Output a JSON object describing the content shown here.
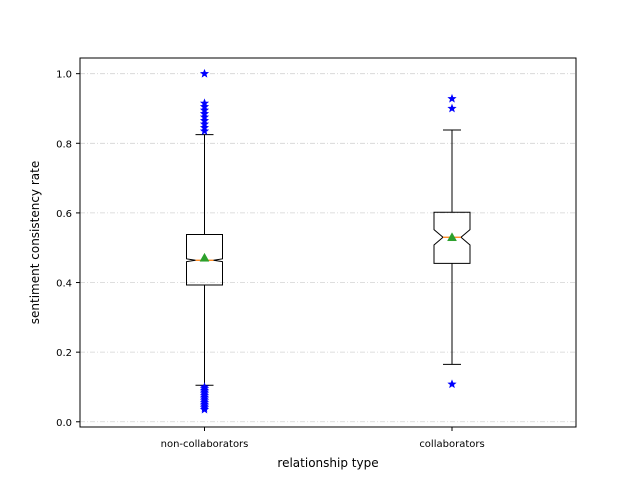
{
  "chart_data": {
    "type": "box",
    "title": "",
    "xlabel": "relationship type",
    "ylabel": "sentiment consistency rate",
    "ylim": [
      -0.015,
      1.045
    ],
    "yticks": [
      0.0,
      0.2,
      0.4,
      0.6,
      0.8,
      1.0
    ],
    "ytick_labels": [
      "0.0",
      "0.2",
      "0.4",
      "0.6",
      "0.8",
      "1.0"
    ],
    "grid": {
      "y": true,
      "x": false,
      "style": "dash-dot"
    },
    "notched": true,
    "show_means": true,
    "colors": {
      "box": "#000000",
      "median": "#ff7f0e",
      "mean": "#2ca02c",
      "flier": "#0000ff",
      "grid": "#d3d3d3"
    },
    "categories": [
      "non-collaborators",
      "collaborators"
    ],
    "boxes": [
      {
        "name": "non-collaborators",
        "whisker_low": 0.105,
        "q1": 0.393,
        "median": 0.464,
        "q3": 0.538,
        "whisker_high": 0.825,
        "mean": 0.471,
        "notch_low": 0.46,
        "notch_high": 0.468,
        "fliers": [
          0.035,
          0.04,
          0.045,
          0.05,
          0.055,
          0.06,
          0.065,
          0.07,
          0.075,
          0.08,
          0.085,
          0.09,
          0.095,
          0.1,
          0.835,
          0.845,
          0.855,
          0.865,
          0.875,
          0.885,
          0.895,
          0.905,
          0.915,
          1.0
        ]
      },
      {
        "name": "collaborators",
        "whisker_low": 0.165,
        "q1": 0.455,
        "median": 0.53,
        "q3": 0.602,
        "whisker_high": 0.838,
        "mean": 0.53,
        "notch_low": 0.508,
        "notch_high": 0.552,
        "fliers": [
          0.108,
          0.9,
          0.928
        ]
      }
    ]
  }
}
